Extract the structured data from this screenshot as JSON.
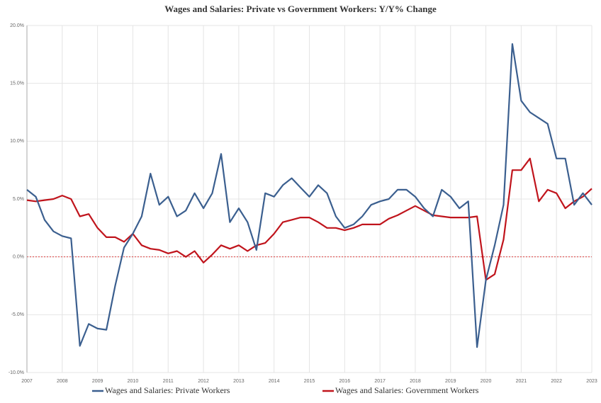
{
  "chart_data": {
    "type": "line",
    "title": "Wages and Salaries: Private vs Government Workers: Y/Y% Change",
    "x": [
      2007.0,
      2007.25,
      2007.5,
      2007.75,
      2008.0,
      2008.25,
      2008.5,
      2008.75,
      2009.0,
      2009.25,
      2009.5,
      2009.75,
      2010.0,
      2010.25,
      2010.5,
      2010.75,
      2011.0,
      2011.25,
      2011.5,
      2011.75,
      2012.0,
      2012.25,
      2012.5,
      2012.75,
      2013.0,
      2013.25,
      2013.5,
      2013.75,
      2014.0,
      2014.25,
      2014.5,
      2014.75,
      2015.0,
      2015.25,
      2015.5,
      2015.75,
      2016.0,
      2016.25,
      2016.5,
      2016.75,
      2017.0,
      2017.25,
      2017.5,
      2017.75,
      2018.0,
      2018.25,
      2018.5,
      2018.75,
      2019.0,
      2019.25,
      2019.5,
      2019.75,
      2020.0,
      2020.25,
      2020.5,
      2020.75,
      2021.0,
      2021.25,
      2021.5,
      2021.75,
      2022.0,
      2022.25,
      2022.5,
      2022.75,
      2023.0
    ],
    "series": [
      {
        "name": "Wages and Salaries: Private Workers",
        "color": "#3b5f8f",
        "values": [
          5.8,
          5.2,
          3.2,
          2.2,
          1.8,
          1.6,
          -7.7,
          -5.8,
          -6.2,
          -6.3,
          -2.5,
          0.8,
          2.0,
          3.5,
          7.2,
          4.5,
          5.2,
          3.5,
          4.0,
          5.5,
          4.2,
          5.5,
          8.9,
          3.0,
          4.2,
          3.0,
          0.6,
          5.5,
          5.2,
          6.2,
          6.8,
          6.0,
          5.2,
          6.2,
          5.5,
          3.5,
          2.5,
          2.8,
          3.5,
          4.5,
          4.8,
          5.0,
          5.8,
          5.8,
          5.2,
          4.2,
          3.5,
          5.8,
          5.2,
          4.2,
          4.8,
          -7.8,
          -2.0,
          1.0,
          4.5,
          18.4,
          13.5,
          12.5,
          12.0,
          11.5,
          8.5,
          8.5,
          4.5,
          5.5,
          4.5
        ]
      },
      {
        "name": "Wages and Salaries: Government Workers",
        "color": "#c0141c",
        "values": [
          4.9,
          4.8,
          4.9,
          5.0,
          5.3,
          5.0,
          3.5,
          3.7,
          2.5,
          1.7,
          1.7,
          1.3,
          2.0,
          1.0,
          0.7,
          0.6,
          0.3,
          0.5,
          0.0,
          0.5,
          -0.5,
          0.2,
          1.0,
          0.7,
          1.0,
          0.5,
          1.0,
          1.2,
          2.0,
          3.0,
          3.2,
          3.4,
          3.4,
          3.0,
          2.5,
          2.5,
          2.3,
          2.5,
          2.8,
          2.8,
          2.8,
          3.3,
          3.6,
          4.0,
          4.4,
          4.0,
          3.6,
          3.5,
          3.4,
          3.4,
          3.4,
          3.5,
          -2.0,
          -1.5,
          1.5,
          7.5,
          7.5,
          8.5,
          4.8,
          5.8,
          5.5,
          4.2,
          4.8,
          5.2,
          5.9
        ]
      }
    ],
    "xlim": [
      2007,
      2023
    ],
    "xticks": [
      2007,
      2008,
      2009,
      2010,
      2011,
      2012,
      2013,
      2014,
      2015,
      2016,
      2017,
      2018,
      2019,
      2020,
      2021,
      2022,
      2023
    ],
    "ylim": [
      -10,
      20
    ],
    "yticks": [
      {
        "value": 20,
        "label": "20.0%"
      },
      {
        "value": 15,
        "label": "15.0%"
      },
      {
        "value": 10,
        "label": "10.0%"
      },
      {
        "value": 5,
        "label": "5.0%"
      },
      {
        "value": 0,
        "label": "0.0%"
      },
      {
        "value": -5,
        "label": "-5.0%"
      },
      {
        "value": -10,
        "label": "-10.0%"
      }
    ],
    "grid": true,
    "zero_line_color": "#e04040",
    "legend": "bottom"
  }
}
